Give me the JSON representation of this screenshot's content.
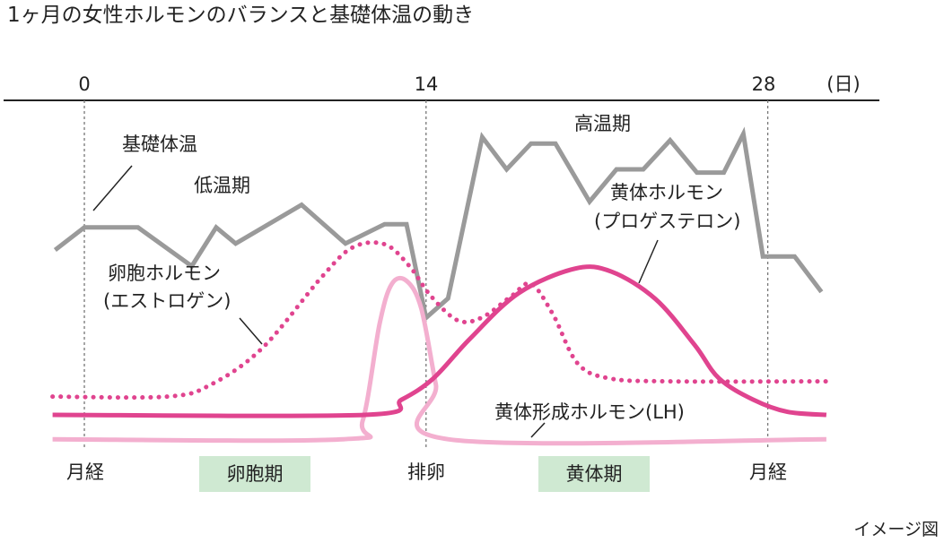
{
  "title": "1ヶ月の女性ホルモンのバランスと基礎体温の動き",
  "caption": "イメージ図",
  "colors": {
    "temperature": "#9a9a9a",
    "estrogen": "#e0448f",
    "progesterone": "#e0448f",
    "lh": "#f3afcf",
    "phase_bg": "#cfe9d2",
    "axis": "#222222",
    "guide": "#777777"
  },
  "chart_data": {
    "type": "line",
    "x_axis": {
      "ticks": [
        0,
        14,
        28
      ],
      "tick_labels": [
        "0",
        "14",
        "28"
      ],
      "unit": "(日)",
      "range": [
        -1.3,
        30.4
      ]
    },
    "y_axis": {
      "values_shown": false
    },
    "grid": false,
    "labels": {
      "temperature_name": "基礎体温",
      "low_phase": "低温期",
      "high_phase": "高温期",
      "estrogen_line1": "卵胞ホルモン",
      "estrogen_line2": "(エストロゲン)",
      "progesterone_line1": "黄体ホルモン",
      "progesterone_line2": "(プロゲステロン)",
      "lh": "黄体形成ホルモン(LH)"
    },
    "events": {
      "menstruation_start": "月経",
      "ovulation": "排卵",
      "menstruation_end": "月経"
    },
    "phases": [
      {
        "label": "卵胞期",
        "from": 4.6,
        "to": 9.4
      },
      {
        "label": "黄体期",
        "from": 18.6,
        "to": 23.3
      }
    ],
    "series": [
      {
        "name": "基礎体温",
        "style": "solid",
        "points": [
          [
            -1.2,
            0.6
          ],
          [
            0,
            0.67
          ],
          [
            2.2,
            0.67
          ],
          [
            4.4,
            0.55
          ],
          [
            5.4,
            0.67
          ],
          [
            6.2,
            0.62
          ],
          [
            8.9,
            0.74
          ],
          [
            10.7,
            0.62
          ],
          [
            12.3,
            0.68
          ],
          [
            13.2,
            0.68
          ],
          [
            14.0,
            0.39
          ],
          [
            14.9,
            0.45
          ],
          [
            16.3,
            0.95
          ],
          [
            17.3,
            0.85
          ],
          [
            18.3,
            0.93
          ],
          [
            19.3,
            0.93
          ],
          [
            20.7,
            0.75
          ],
          [
            21.8,
            0.85
          ],
          [
            22.9,
            0.85
          ],
          [
            24.0,
            0.94
          ],
          [
            25.1,
            0.84
          ],
          [
            26.2,
            0.84
          ],
          [
            27.0,
            0.96
          ],
          [
            27.8,
            0.58
          ],
          [
            29.1,
            0.58
          ],
          [
            30.2,
            0.47
          ]
        ]
      },
      {
        "name": "卵胞ホルモン(エストロゲン)",
        "style": "dotted",
        "points": [
          [
            -1.3,
            0.06
          ],
          [
            3.4,
            0.06
          ],
          [
            5.2,
            0.1
          ],
          [
            7.3,
            0.22
          ],
          [
            9.7,
            0.45
          ],
          [
            11.0,
            0.55
          ],
          [
            12.3,
            0.56
          ],
          [
            13.3,
            0.49
          ],
          [
            14.2,
            0.39
          ],
          [
            15.3,
            0.31
          ],
          [
            16.3,
            0.32
          ],
          [
            17.5,
            0.39
          ],
          [
            18.3,
            0.43
          ],
          [
            19.2,
            0.33
          ],
          [
            20.2,
            0.17
          ],
          [
            21.5,
            0.12
          ],
          [
            24.0,
            0.11
          ],
          [
            30.4,
            0.11
          ]
        ]
      },
      {
        "name": "黄体ホルモン(プロゲステロン)",
        "style": "solid",
        "points": [
          [
            -1.3,
            0.0
          ],
          [
            11.5,
            0.0
          ],
          [
            13.0,
            0.05
          ],
          [
            14.3,
            0.12
          ],
          [
            15.8,
            0.25
          ],
          [
            17.8,
            0.4
          ],
          [
            20.1,
            0.48
          ],
          [
            21.6,
            0.47
          ],
          [
            23.4,
            0.38
          ],
          [
            25.0,
            0.23
          ],
          [
            26.0,
            0.12
          ],
          [
            27.4,
            0.05
          ],
          [
            28.8,
            0.01
          ],
          [
            30.4,
            0.0
          ]
        ]
      },
      {
        "name": "黄体形成ホルモン(LH)",
        "style": "solid",
        "points": [
          [
            -1.3,
            -0.08
          ],
          [
            10.6,
            -0.08
          ],
          [
            11.4,
            -0.02
          ],
          [
            12.1,
            0.3
          ],
          [
            12.6,
            0.43
          ],
          [
            13.2,
            0.44
          ],
          [
            13.8,
            0.35
          ],
          [
            14.4,
            0.1
          ],
          [
            14.9,
            -0.08
          ],
          [
            30.4,
            -0.08
          ]
        ]
      }
    ]
  }
}
